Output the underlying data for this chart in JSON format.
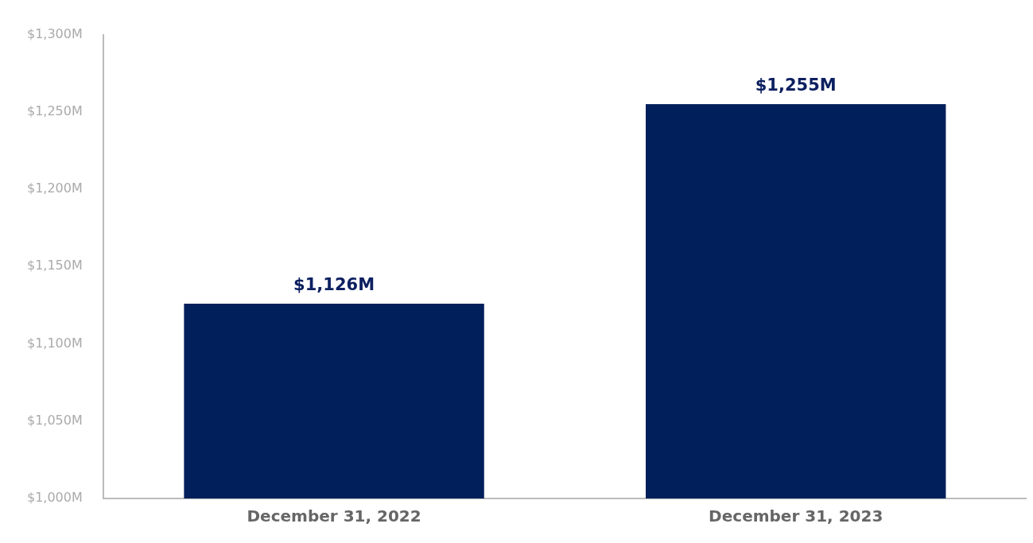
{
  "chart_data": {
    "type": "bar",
    "categories": [
      "December 31, 2022",
      "December 31, 2023"
    ],
    "values": [
      1126,
      1255
    ],
    "color": "#001f5b",
    "value_labels": [
      "$1,126M",
      "$1,255M"
    ],
    "ylim": [
      1000,
      1300
    ],
    "yticks": [
      {
        "value": 1000,
        "label": "$1,000M"
      },
      {
        "value": 1050,
        "label": "$1,050M"
      },
      {
        "value": 1100,
        "label": "$1,100M"
      },
      {
        "value": 1150,
        "label": "$1,150M"
      },
      {
        "value": 1200,
        "label": "$1,200M"
      },
      {
        "value": 1250,
        "label": "$1,250M"
      },
      {
        "value": 1300,
        "label": "$1,300M"
      }
    ],
    "grid": false,
    "legend": false
  }
}
